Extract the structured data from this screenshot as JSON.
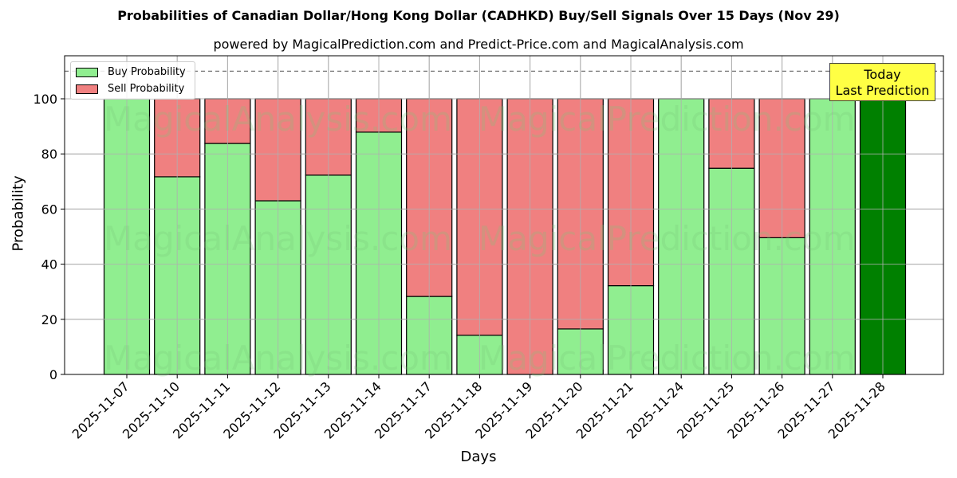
{
  "chart_data": {
    "type": "bar",
    "stacked": true,
    "title": "Probabilities of Canadian Dollar/Hong Kong Dollar (CADHKD) Buy/Sell Signals Over 15 Days (Nov 29)",
    "subtitle": "powered by MagicalPrediction.com and Predict-Price.com and MagicalAnalysis.com",
    "xlabel": "Days",
    "ylabel": "Probability",
    "ylim": [
      0,
      115
    ],
    "yticks": [
      0,
      20,
      40,
      60,
      80,
      100
    ],
    "grid": true,
    "dashed_line_y": 110,
    "legend_position": "upper left",
    "categories": [
      "2025-11-07",
      "2025-11-10",
      "2025-11-11",
      "2025-11-12",
      "2025-11-13",
      "2025-11-14",
      "2025-11-17",
      "2025-11-18",
      "2025-11-19",
      "2025-11-20",
      "2025-11-21",
      "2025-11-24",
      "2025-11-25",
      "2025-11-26",
      "2025-11-27",
      "2025-11-28"
    ],
    "series": [
      {
        "name": "Buy Probability",
        "color": "#90ee90",
        "values": [
          100,
          71.7,
          83.8,
          63.0,
          72.3,
          87.9,
          28.3,
          14.2,
          0,
          16.5,
          32.2,
          100,
          74.8,
          49.6,
          100,
          100
        ]
      },
      {
        "name": "Sell Probability",
        "color": "#f08080",
        "values": [
          0,
          28.3,
          16.2,
          37.0,
          27.7,
          12.1,
          71.7,
          85.8,
          100,
          83.5,
          67.8,
          0,
          25.2,
          50.4,
          0,
          0
        ]
      }
    ],
    "highlight": {
      "category": "2025-11-28",
      "color": "#008000",
      "annotation": "Today\nLast Prediction"
    }
  },
  "labels": {
    "title": "Probabilities of Canadian Dollar/Hong Kong Dollar (CADHKD) Buy/Sell Signals Over 15 Days (Nov 29)",
    "subtitle": "powered by MagicalPrediction.com and Predict-Price.com and MagicalAnalysis.com",
    "xlabel": "Days",
    "ylabel": "Probability",
    "legend_buy": "Buy Probability",
    "legend_sell": "Sell Probability",
    "today_line1": "Today",
    "today_line2": "Last Prediction",
    "watermarks": [
      "MagicalAnalysis.com",
      "MagicalPrediction.com"
    ]
  }
}
